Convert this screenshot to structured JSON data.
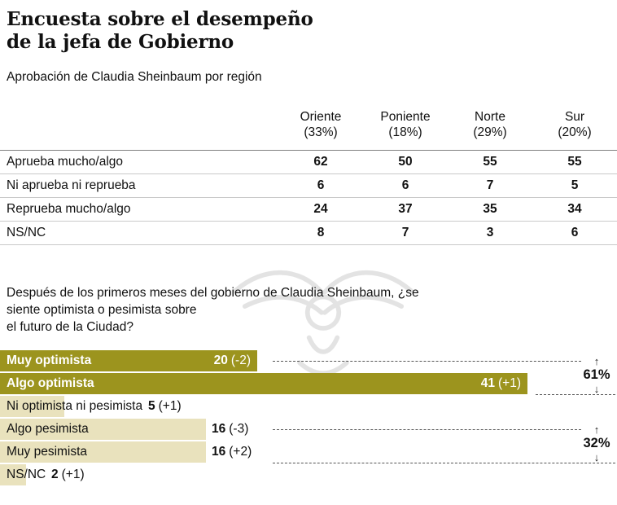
{
  "title": {
    "line1": "Encuesta sobre el desempeño",
    "line2": "de la jefa de Gobierno"
  },
  "subtitle": "Aprobación de Claudia Sheinbaum por región",
  "chart_data": [
    {
      "type": "table",
      "title": "Aprobación de Claudia Sheinbaum por región",
      "columns": [
        {
          "name": "Oriente",
          "share": "(33%)"
        },
        {
          "name": "Poniente",
          "share": "(18%)"
        },
        {
          "name": "Norte",
          "share": "(29%)"
        },
        {
          "name": "Sur",
          "share": "(20%)"
        }
      ],
      "rows": [
        {
          "label": "Aprueba mucho/algo",
          "values": [
            62,
            50,
            55,
            55
          ]
        },
        {
          "label": "Ni aprueba ni reprueba",
          "values": [
            6,
            6,
            7,
            5
          ]
        },
        {
          "label": "Reprueba mucho/algo",
          "values": [
            24,
            37,
            35,
            34
          ]
        },
        {
          "label": "NS/NC",
          "values": [
            8,
            7,
            3,
            6
          ]
        }
      ]
    },
    {
      "type": "bar",
      "orientation": "horizontal",
      "question_lines": [
        "Después de los primeros meses del gobierno de Claudia Sheinbaum, ¿se",
        "siente optimista o pesimista sobre",
        "el futuro de la Ciudad?"
      ],
      "xmax": 41,
      "bars": [
        {
          "label": "Muy optimista",
          "value": 20,
          "change": "(-2)",
          "tone": "dark",
          "value_pos": "inside-end"
        },
        {
          "label": "Algo optimista",
          "value": 41,
          "change": "(+1)",
          "tone": "dark",
          "value_pos": "inside-end"
        },
        {
          "label": "Ni optimista ni pesimista",
          "value": 5,
          "change": "(+1)",
          "tone": "light",
          "value_pos": "after-label"
        },
        {
          "label": "Algo pesimista",
          "value": 16,
          "change": "(-3)",
          "tone": "light",
          "value_pos": "after-bar"
        },
        {
          "label": "Muy pesimista",
          "value": 16,
          "change": "(+2)",
          "tone": "light",
          "value_pos": "after-bar"
        },
        {
          "label": "NS/NC",
          "value": 2,
          "change": "(+1)",
          "tone": "light",
          "value_pos": "after-label"
        }
      ],
      "groups": [
        {
          "label": "61%",
          "sum_of": [
            "Muy optimista",
            "Algo optimista"
          ]
        },
        {
          "label": "32%",
          "sum_of": [
            "Algo pesimista",
            "Muy pesimista"
          ]
        }
      ]
    }
  ],
  "icons": {
    "arrow_up": "↑",
    "arrow_down": "↓",
    "watermark": "eagle-emblem"
  },
  "colors": {
    "bar_dark": "#9c941e",
    "bar_light": "#e9e2bd",
    "text": "#111111",
    "rule_dark": "#808080",
    "rule_light": "#c9c9c9",
    "dash": "#555555"
  }
}
